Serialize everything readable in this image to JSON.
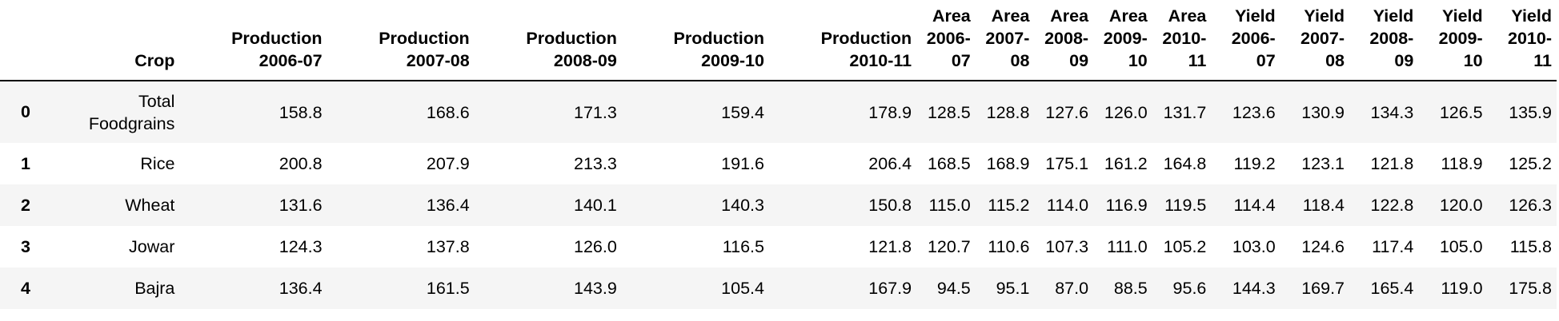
{
  "table": {
    "columns": [
      "",
      "Crop",
      "Production 2006-07",
      "Production 2007-08",
      "Production 2008-09",
      "Production 2009-10",
      "Production 2010-11",
      "Area 2006-07",
      "Area 2007-08",
      "Area 2008-09",
      "Area 2009-10",
      "Area 2010-11",
      "Yield 2006-07",
      "Yield 2007-08",
      "Yield 2008-09",
      "Yield 2009-10",
      "Yield 2010-11"
    ],
    "rows": [
      [
        "0",
        "Total Foodgrains",
        "158.8",
        "168.6",
        "171.3",
        "159.4",
        "178.9",
        "128.5",
        "128.8",
        "127.6",
        "126.0",
        "131.7",
        "123.6",
        "130.9",
        "134.3",
        "126.5",
        "135.9"
      ],
      [
        "1",
        "Rice",
        "200.8",
        "207.9",
        "213.3",
        "191.6",
        "206.4",
        "168.5",
        "168.9",
        "175.1",
        "161.2",
        "164.8",
        "119.2",
        "123.1",
        "121.8",
        "118.9",
        "125.2"
      ],
      [
        "2",
        "Wheat",
        "131.6",
        "136.4",
        "140.1",
        "140.3",
        "150.8",
        "115.0",
        "115.2",
        "114.0",
        "116.9",
        "119.5",
        "114.4",
        "118.4",
        "122.8",
        "120.0",
        "126.3"
      ],
      [
        "3",
        "Jowar",
        "124.3",
        "137.8",
        "126.0",
        "116.5",
        "121.8",
        "120.7",
        "110.6",
        "107.3",
        "111.0",
        "105.2",
        "103.0",
        "124.6",
        "117.4",
        "105.0",
        "115.8"
      ],
      [
        "4",
        "Bajra",
        "136.4",
        "161.5",
        "143.9",
        "105.4",
        "167.9",
        "94.5",
        "95.1",
        "87.0",
        "88.5",
        "95.6",
        "144.3",
        "169.7",
        "165.4",
        "119.0",
        "175.8"
      ]
    ]
  }
}
